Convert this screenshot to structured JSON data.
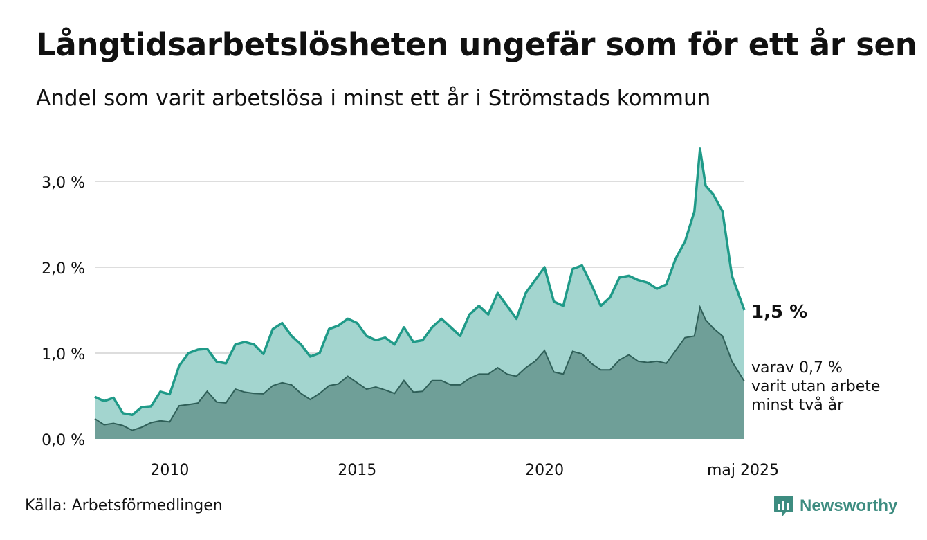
{
  "header": {
    "title": "Långtidsarbetslösheten ungefär som för ett år sen",
    "subtitle": "Andel som varit arbetslösa i minst ett år i Strömstads kommun"
  },
  "footer": {
    "source": "Källa: Arbetsförmedlingen",
    "brand": "Newsworthy"
  },
  "annotations": {
    "total_label": "1,5 %",
    "sub_label_lines": [
      "varav 0,7 %",
      "varit utan arbete",
      "minst två år"
    ]
  },
  "colors": {
    "total_line": "#1f9a88",
    "total_fill": "#a3d5cf",
    "sub_line": "#2f5f58",
    "sub_fill": "#6f9f98",
    "grid": "#dddddd",
    "brand": "#3d8c80"
  },
  "chart_data": {
    "type": "area",
    "title": "Långtidsarbetslösheten ungefär som för ett år sen",
    "subtitle": "Andel som varit arbetslösa i minst ett år i Strömstads kommun",
    "xlabel": "",
    "ylabel": "",
    "x_range": [
      2008.0,
      2025.333
    ],
    "ylim": [
      0,
      3.5
    ],
    "y_ticks": [
      0,
      1,
      2,
      3
    ],
    "y_tick_labels": [
      "0,0 %",
      "1,0 %",
      "2,0 %",
      "3,0 %"
    ],
    "x_ticks": [
      2010,
      2015,
      2020,
      2025.333
    ],
    "x_tick_labels": [
      "2010",
      "2015",
      "2020",
      "maj 2025"
    ],
    "grid": true,
    "series": [
      {
        "role": "total",
        "points": [
          [
            2008.0,
            0.49
          ],
          [
            2008.25,
            0.44
          ],
          [
            2008.5,
            0.48
          ],
          [
            2008.75,
            0.3
          ],
          [
            2009.0,
            0.28
          ],
          [
            2009.25,
            0.37
          ],
          [
            2009.5,
            0.38
          ],
          [
            2009.75,
            0.55
          ],
          [
            2010.0,
            0.52
          ],
          [
            2010.25,
            0.85
          ],
          [
            2010.5,
            1.0
          ],
          [
            2010.75,
            1.04
          ],
          [
            2011.0,
            1.05
          ],
          [
            2011.25,
            0.9
          ],
          [
            2011.5,
            0.88
          ],
          [
            2011.75,
            1.1
          ],
          [
            2012.0,
            1.13
          ],
          [
            2012.25,
            1.1
          ],
          [
            2012.5,
            0.99
          ],
          [
            2012.75,
            1.28
          ],
          [
            2013.0,
            1.35
          ],
          [
            2013.25,
            1.2
          ],
          [
            2013.5,
            1.1
          ],
          [
            2013.75,
            0.96
          ],
          [
            2014.0,
            1.0
          ],
          [
            2014.25,
            1.28
          ],
          [
            2014.5,
            1.32
          ],
          [
            2014.75,
            1.4
          ],
          [
            2015.0,
            1.35
          ],
          [
            2015.25,
            1.2
          ],
          [
            2015.5,
            1.15
          ],
          [
            2015.75,
            1.18
          ],
          [
            2016.0,
            1.1
          ],
          [
            2016.25,
            1.3
          ],
          [
            2016.5,
            1.13
          ],
          [
            2016.75,
            1.15
          ],
          [
            2017.0,
            1.3
          ],
          [
            2017.25,
            1.4
          ],
          [
            2017.5,
            1.3
          ],
          [
            2017.75,
            1.2
          ],
          [
            2018.0,
            1.45
          ],
          [
            2018.25,
            1.55
          ],
          [
            2018.5,
            1.45
          ],
          [
            2018.75,
            1.7
          ],
          [
            2019.0,
            1.55
          ],
          [
            2019.25,
            1.4
          ],
          [
            2019.5,
            1.7
          ],
          [
            2019.75,
            1.85
          ],
          [
            2020.0,
            2.0
          ],
          [
            2020.25,
            1.6
          ],
          [
            2020.5,
            1.55
          ],
          [
            2020.75,
            1.98
          ],
          [
            2021.0,
            2.02
          ],
          [
            2021.25,
            1.8
          ],
          [
            2021.5,
            1.55
          ],
          [
            2021.75,
            1.65
          ],
          [
            2022.0,
            1.88
          ],
          [
            2022.25,
            1.9
          ],
          [
            2022.5,
            1.85
          ],
          [
            2022.75,
            1.82
          ],
          [
            2023.0,
            1.75
          ],
          [
            2023.25,
            1.8
          ],
          [
            2023.5,
            2.1
          ],
          [
            2023.75,
            2.3
          ],
          [
            2024.0,
            2.65
          ],
          [
            2024.15,
            3.38
          ],
          [
            2024.3,
            2.95
          ],
          [
            2024.5,
            2.85
          ],
          [
            2024.75,
            2.65
          ],
          [
            2025.0,
            1.9
          ],
          [
            2025.333,
            1.5
          ]
        ]
      }
    ]
  }
}
